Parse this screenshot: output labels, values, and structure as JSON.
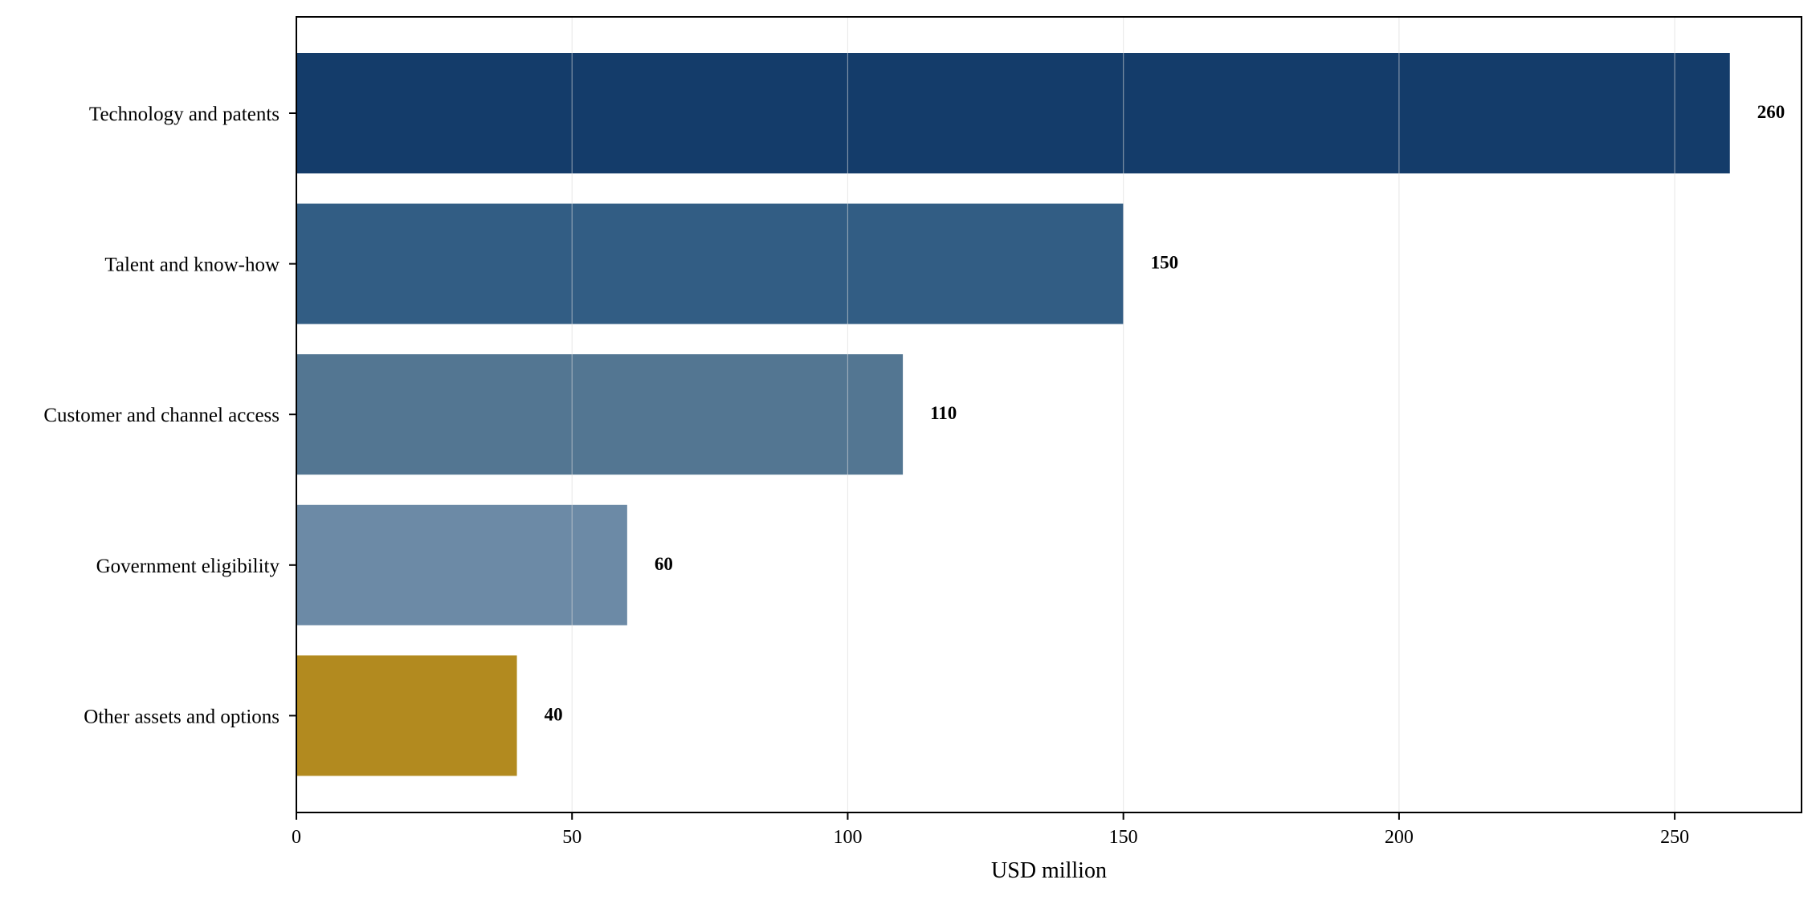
{
  "chart_data": {
    "type": "bar",
    "orientation": "horizontal",
    "categories": [
      "Technology and patents",
      "Talent and know-how",
      "Customer and channel access",
      "Government eligibility",
      "Other assets and options"
    ],
    "values": [
      260,
      150,
      110,
      60,
      40
    ],
    "value_labels": [
      "260",
      "150",
      "110",
      "60",
      "40"
    ],
    "bar_colors": [
      "#143c6a",
      "#325d84",
      "#537692",
      "#6c8aa6",
      "#b28a1f"
    ],
    "title": "",
    "xlabel": "USD million",
    "ylabel": "",
    "xlim": [
      0,
      273
    ],
    "xticks": [
      0,
      50,
      100,
      150,
      200,
      250
    ],
    "xtick_labels": [
      "0",
      "50",
      "100",
      "150",
      "200",
      "250"
    ],
    "grid": "vertical",
    "legend": "none"
  }
}
